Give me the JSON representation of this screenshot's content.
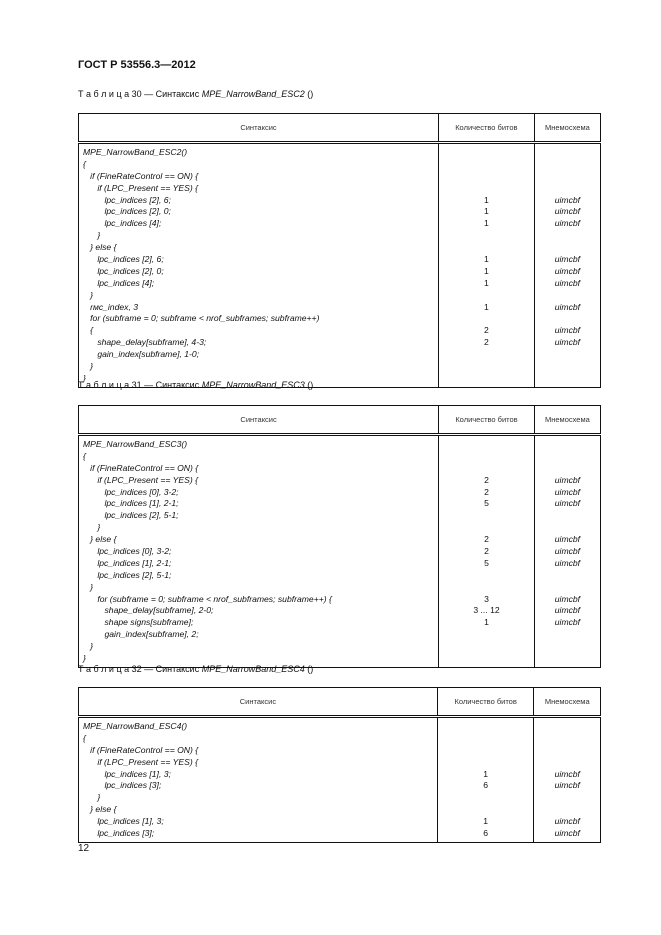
{
  "header": "ГОСТ Р 53556.3—2012",
  "page_number": "12",
  "tables": [
    {
      "caption_prefix": "Т а б л и ц а  30 — Синтаксис ",
      "caption_name": "MPE_NarrowBand_ESC2",
      "caption_suffix": " ()",
      "columns": [
        "Синтаксис",
        "Количество битов",
        "Мнемосхема"
      ],
      "lines": [
        {
          "code": "MPE_NarrowBand_ESC2()",
          "bits": "",
          "mnemonic": ""
        },
        {
          "code": "{",
          "bits": "",
          "mnemonic": ""
        },
        {
          "code": "   if (FineRateControl == ON) {",
          "bits": "",
          "mnemonic": ""
        },
        {
          "code": "      if (LPC_Present == YES) {",
          "bits": "",
          "mnemonic": ""
        },
        {
          "code": "         lpc_indices [2], 6;",
          "bits": "1",
          "mnemonic": "uimcbf"
        },
        {
          "code": "         lpc_indices [2], 0;",
          "bits": "1",
          "mnemonic": "uimcbf"
        },
        {
          "code": "         lpc_indices [4];",
          "bits": "1",
          "mnemonic": "uimcbf"
        },
        {
          "code": "      }",
          "bits": "",
          "mnemonic": ""
        },
        {
          "code": "   } else {",
          "bits": "",
          "mnemonic": ""
        },
        {
          "code": "      lpc_indices [2], 6;",
          "bits": "1",
          "mnemonic": "uimcbf"
        },
        {
          "code": "      lpc_indices [2], 0;",
          "bits": "1",
          "mnemonic": "uimcbf"
        },
        {
          "code": "      lpc_indices [4];",
          "bits": "1",
          "mnemonic": "uimcbf"
        },
        {
          "code": "   }",
          "bits": "",
          "mnemonic": ""
        },
        {
          "code": "   rмс_index, 3",
          "bits": "1",
          "mnemonic": "uimcbf"
        },
        {
          "code": "   for (subframe = 0; subframe < nrof_subframes; subframe++)",
          "bits": "",
          "mnemonic": ""
        },
        {
          "code": "   {",
          "bits": "2",
          "mnemonic": "uimcbf"
        },
        {
          "code": "      shape_delay[subframe], 4-3;",
          "bits": "2",
          "mnemonic": "uimcbf"
        },
        {
          "code": "      gain_index[subframe], 1-0;",
          "bits": "",
          "mnemonic": ""
        },
        {
          "code": "   }",
          "bits": "",
          "mnemonic": ""
        },
        {
          "code": "}",
          "bits": "",
          "mnemonic": ""
        }
      ]
    },
    {
      "caption_prefix": "Т а б л и ц а  31 — Синтаксис ",
      "caption_name": "MPE_NarrowBand_ESC3",
      "caption_suffix": " ()",
      "columns": [
        "Синтаксис",
        "Количество битов",
        "Мнемосхема"
      ],
      "lines": [
        {
          "code": "MPE_NarrowBand_ESC3()",
          "bits": "",
          "mnemonic": ""
        },
        {
          "code": "{",
          "bits": "",
          "mnemonic": ""
        },
        {
          "code": "   if (FineRateControl == ON) {",
          "bits": "",
          "mnemonic": ""
        },
        {
          "code": "      if (LPC_Present == YES) {",
          "bits": "2",
          "mnemonic": "uimcbf"
        },
        {
          "code": "         lpc_indices [0], 3-2;",
          "bits": "2",
          "mnemonic": "uimcbf"
        },
        {
          "code": "         lpc_indices [1], 2-1;",
          "bits": "5",
          "mnemonic": "uimcbf"
        },
        {
          "code": "         lpc_indices [2], 5-1;",
          "bits": "",
          "mnemonic": ""
        },
        {
          "code": "      }",
          "bits": "",
          "mnemonic": ""
        },
        {
          "code": "   } else {",
          "bits": "2",
          "mnemonic": "uimcbf"
        },
        {
          "code": "      lpc_indices [0], 3-2;",
          "bits": "2",
          "mnemonic": "uimcbf"
        },
        {
          "code": "      lpc_indices [1], 2-1;",
          "bits": "5",
          "mnemonic": "uimcbf"
        },
        {
          "code": "      lpc_indices [2], 5-1;",
          "bits": "",
          "mnemonic": ""
        },
        {
          "code": "   }",
          "bits": "",
          "mnemonic": ""
        },
        {
          "code": "      for (subframe = 0; subframe < nrof_subframes; subframe++) {",
          "bits": "3",
          "mnemonic": "uimcbf"
        },
        {
          "code": "         shape_delay[subframe], 2-0;",
          "bits": "3 ... 12",
          "mnemonic": "uimcbf"
        },
        {
          "code": "         shape signs[subframe];",
          "bits": "1",
          "mnemonic": "uimcbf"
        },
        {
          "code": "         gain_index[subframe], 2;",
          "bits": "",
          "mnemonic": ""
        },
        {
          "code": "   }",
          "bits": "",
          "mnemonic": ""
        },
        {
          "code": "}",
          "bits": "",
          "mnemonic": ""
        }
      ]
    },
    {
      "caption_prefix": "Т а б л и ц а  32 — Синтаксис ",
      "caption_name": "MPE_NarrowBand_ESC4",
      "caption_suffix": " ()",
      "columns": [
        "Синтаксис",
        "Количество битов",
        "Мнемосхема"
      ],
      "lines": [
        {
          "code": "MPE_NarrowBand_ESC4()",
          "bits": "",
          "mnemonic": ""
        },
        {
          "code": "{",
          "bits": "",
          "mnemonic": ""
        },
        {
          "code": "   if (FineRateControl == ON) {",
          "bits": "",
          "mnemonic": ""
        },
        {
          "code": "      if (LPC_Present == YES) {",
          "bits": "",
          "mnemonic": ""
        },
        {
          "code": "         lpc_indices [1], 3;",
          "bits": "1",
          "mnemonic": "uimcbf"
        },
        {
          "code": "         lpc_indices [3];",
          "bits": "6",
          "mnemonic": "uimcbf"
        },
        {
          "code": "      }",
          "bits": "",
          "mnemonic": ""
        },
        {
          "code": "   } else {",
          "bits": "",
          "mnemonic": ""
        },
        {
          "code": "      lpc_indices [1], 3;",
          "bits": "1",
          "mnemonic": "uimcbf"
        },
        {
          "code": "      lpc_indices [3];",
          "bits": "6",
          "mnemonic": "uimcbf"
        }
      ]
    }
  ]
}
